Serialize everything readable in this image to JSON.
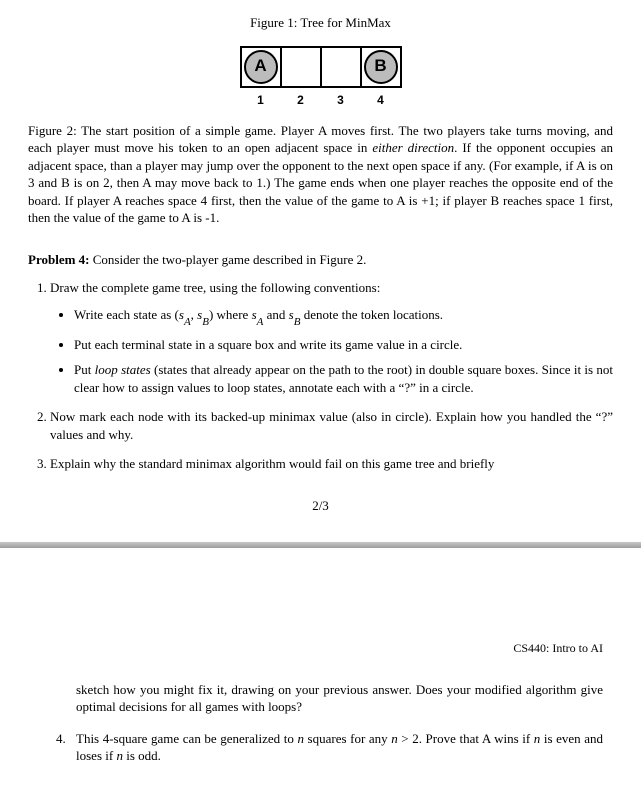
{
  "figure1": {
    "caption": "Figure 1: Tree for MinMax"
  },
  "board": {
    "cells": [
      "A",
      "",
      "",
      "B"
    ],
    "labels": [
      "1",
      "2",
      "3",
      "4"
    ],
    "token_fill": "#bcbcbc",
    "border_color": "#000000"
  },
  "figure2": {
    "lead": "Figure 2: The start position of a simple game. Player A moves first. The two players take turns moving, and each player must move his token to an open adjacent space in ",
    "italic1": "either direction",
    "mid": ". If the opponent occupies an adjacent space, than a player may jump over the opponent to the next open space if any. (For example, if A is on 3 and B is on 2, then A may move back to 1.) The game ends when one player reaches the opposite end of the board. If player A reaches space 4 first, then the value of the game to A is +1; if player B reaches space 1 first, then the value of the game to A is -1."
  },
  "problem": {
    "heading_bold": "Problem 4:",
    "heading_rest": " Consider the two-player game described in Figure 2.",
    "item1_lead": "Draw the complete game tree, using the following conventions:",
    "conv1_a": "Write each state as (",
    "conv1_sA": "s",
    "conv1_subA": "A",
    "conv1_comma": ", ",
    "conv1_sB": "s",
    "conv1_subB": "B",
    "conv1_b": ") where ",
    "conv1_sA2": "s",
    "conv1_subA2": "A",
    "conv1_and": " and ",
    "conv1_sB2": "s",
    "conv1_subB2": "B",
    "conv1_c": " denote the token locations.",
    "conv2": "Put each terminal state in a square box and write its game value in a circle.",
    "conv3_a": "Put ",
    "conv3_it": "loop states",
    "conv3_b": " (states that already appear on the path to the root) in double square boxes. Since it is not clear how to assign values to loop states, annotate each with a “?” in a circle.",
    "item2": "Now mark each node with its backed-up minimax value (also in circle). Explain how you handled the “?” values and why.",
    "item3": "Explain why the standard minimax algorithm would fail on this game tree and briefly"
  },
  "pagenum": "2/3",
  "next_page": {
    "course": "CS440: Intro to AI",
    "continuation": "sketch how you might fix it, drawing on your previous answer. Does your modified algorithm give optimal decisions for all games with loops?",
    "item4_num": "4.",
    "item4_a": "This 4-square game can be generalized to ",
    "item4_n1": "n",
    "item4_b": " squares for any ",
    "item4_n2": "n",
    "item4_c": " > 2. Prove that A wins if ",
    "item4_n3": "n",
    "item4_d": " is even and loses if ",
    "item4_n4": "n",
    "item4_e": " is odd."
  }
}
